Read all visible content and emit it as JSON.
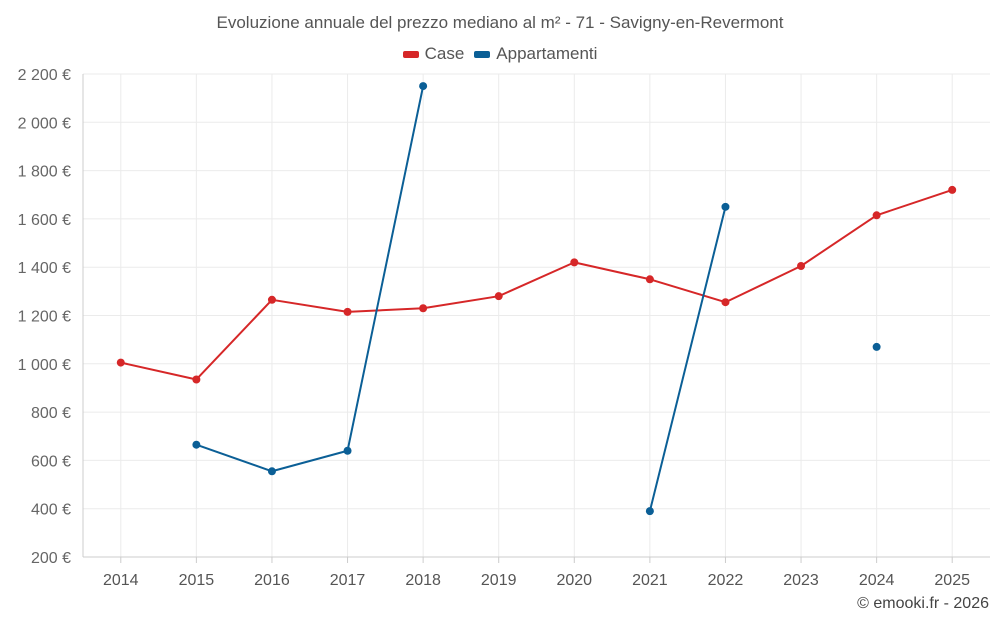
{
  "chart_data": {
    "type": "line",
    "title": "Evoluzione annuale del prezzo mediano al m² - 71 - Savigny-en-Revermont",
    "xlabel": "",
    "ylabel": "",
    "categories": [
      "2014",
      "2015",
      "2016",
      "2017",
      "2018",
      "2019",
      "2020",
      "2021",
      "2022",
      "2023",
      "2024",
      "2025"
    ],
    "ylim": [
      200,
      2200
    ],
    "yticks": [
      200,
      400,
      600,
      800,
      1000,
      1200,
      1400,
      1600,
      1800,
      2000,
      2200
    ],
    "ytick_labels": [
      "200 €",
      "400 €",
      "600 €",
      "800 €",
      "1 000 €",
      "1 200 €",
      "1 400 €",
      "1 600 €",
      "1 800 €",
      "2 000 €",
      "2 200 €"
    ],
    "grid": true,
    "legend_position": "top-center",
    "series": [
      {
        "name": "Case",
        "color": "#d62728",
        "values": [
          1005,
          935,
          1265,
          1215,
          1230,
          1280,
          1420,
          1350,
          1255,
          1405,
          1615,
          1720
        ]
      },
      {
        "name": "Appartamenti",
        "color": "#0b5f96",
        "values": [
          null,
          665,
          555,
          640,
          2150,
          null,
          null,
          390,
          1650,
          null,
          1070,
          null
        ]
      }
    ]
  },
  "credit": "© emooki.fr - 2026"
}
